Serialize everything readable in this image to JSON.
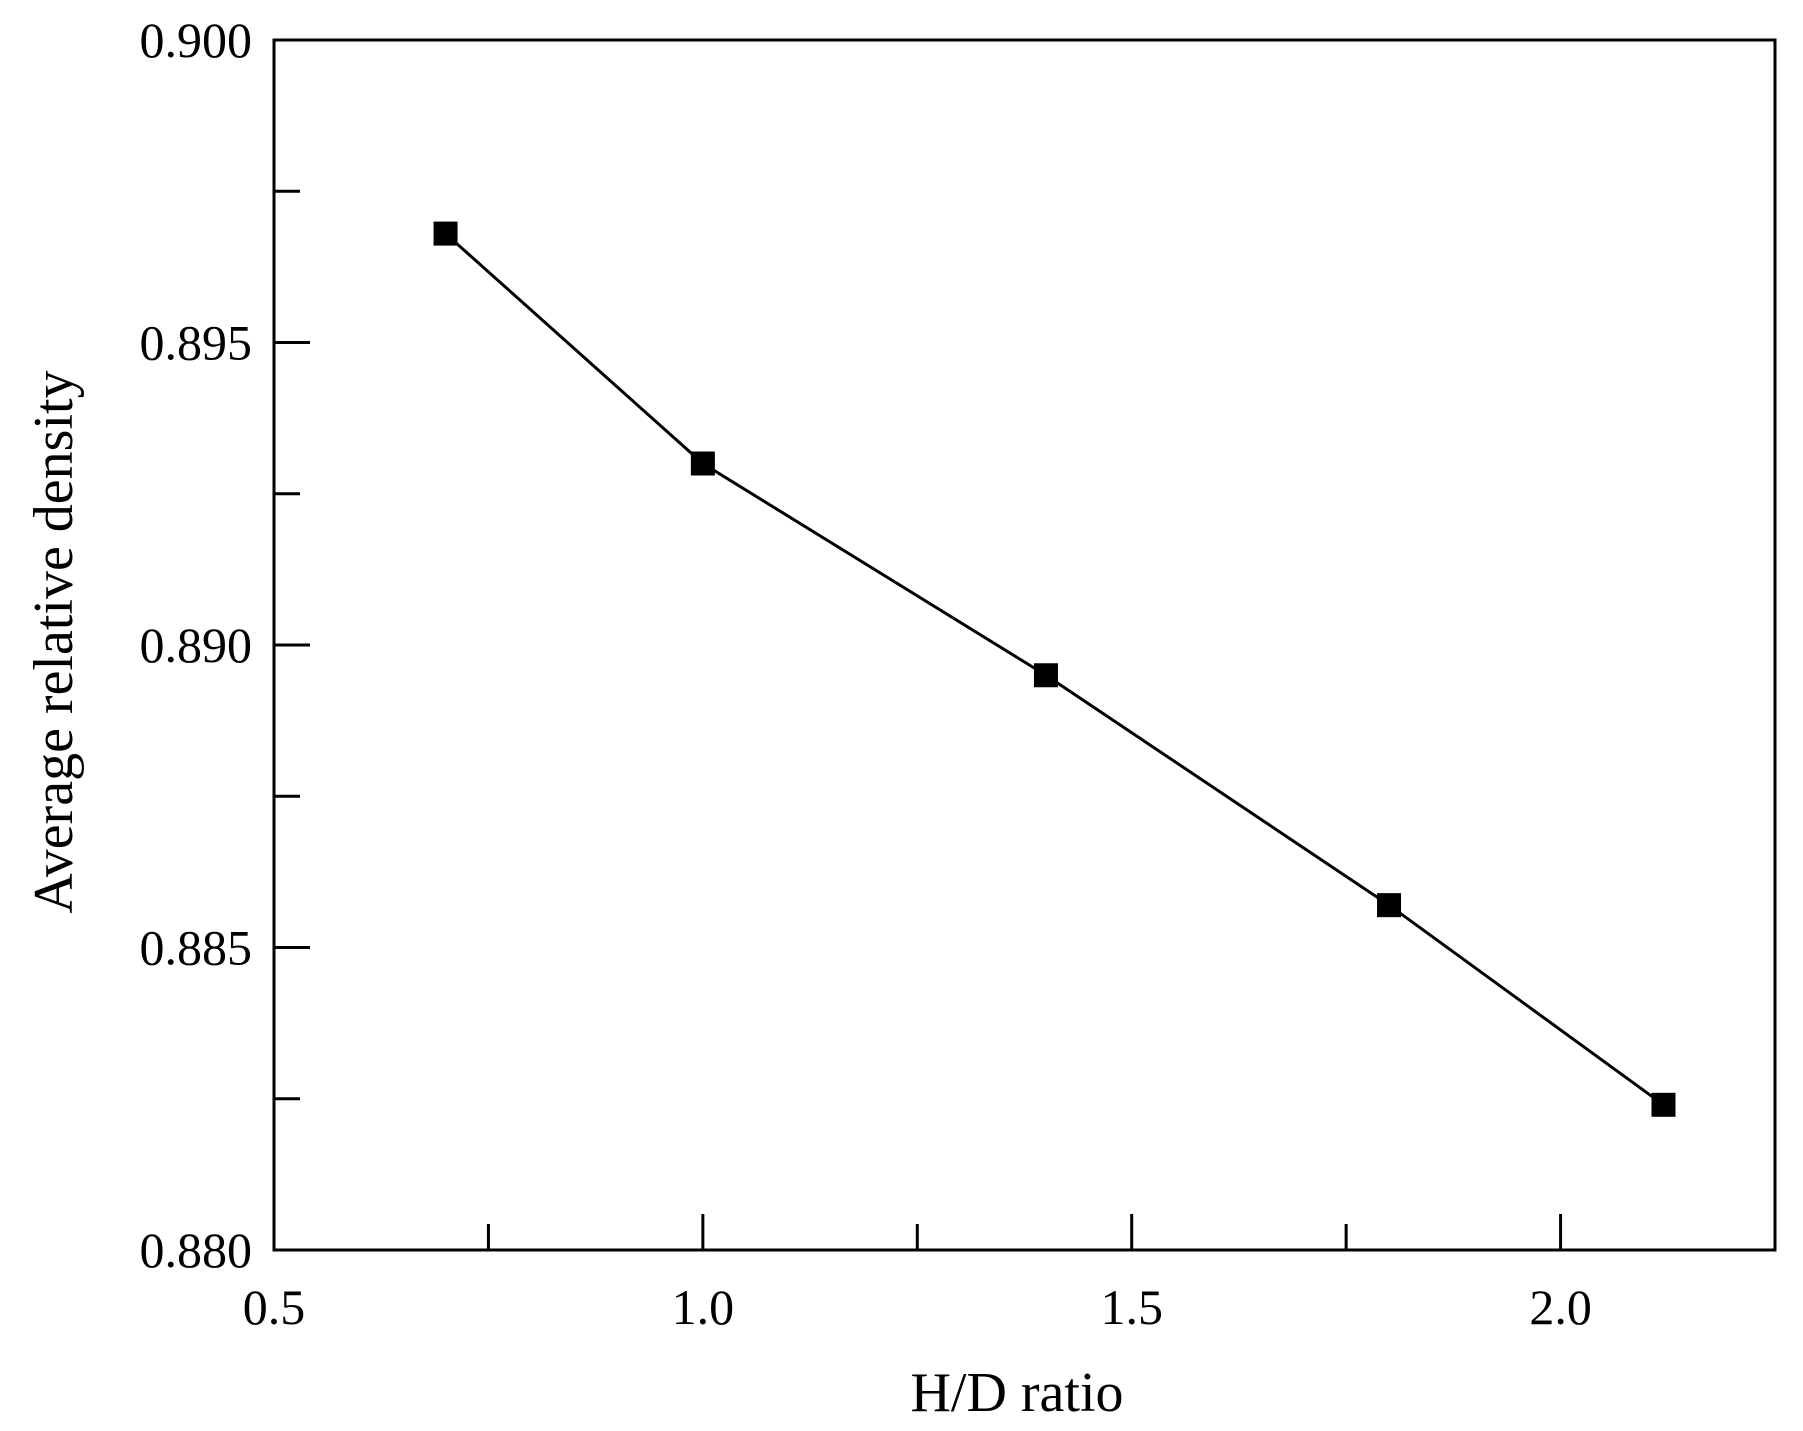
{
  "chart_data": {
    "type": "line",
    "title": "",
    "xlabel": "H/D ratio",
    "ylabel": "Average relative density",
    "xlim": [
      0.5,
      2.25
    ],
    "ylim": [
      0.88,
      0.9
    ],
    "x_ticks_major": [
      0.5,
      1.0,
      1.5,
      2.0
    ],
    "x_tick_labels": [
      "0.5",
      "1.0",
      "1.5",
      "2.0"
    ],
    "x_ticks_minor": [
      0.75,
      1.25,
      1.75
    ],
    "y_ticks_major": [
      0.88,
      0.885,
      0.89,
      0.895,
      0.9
    ],
    "y_tick_labels": [
      "0.880",
      "0.885",
      "0.890",
      "0.895",
      "0.900"
    ],
    "y_ticks_minor": [
      0.8825,
      0.8875,
      0.8925,
      0.8975
    ],
    "grid": false,
    "legend": "none",
    "series": [
      {
        "marker": "filled-square",
        "color": "#000000",
        "x": [
          0.7,
          1.0,
          1.4,
          1.8,
          2.12
        ],
        "y": [
          0.8968,
          0.893,
          0.8895,
          0.8857,
          0.8824
        ]
      }
    ]
  }
}
